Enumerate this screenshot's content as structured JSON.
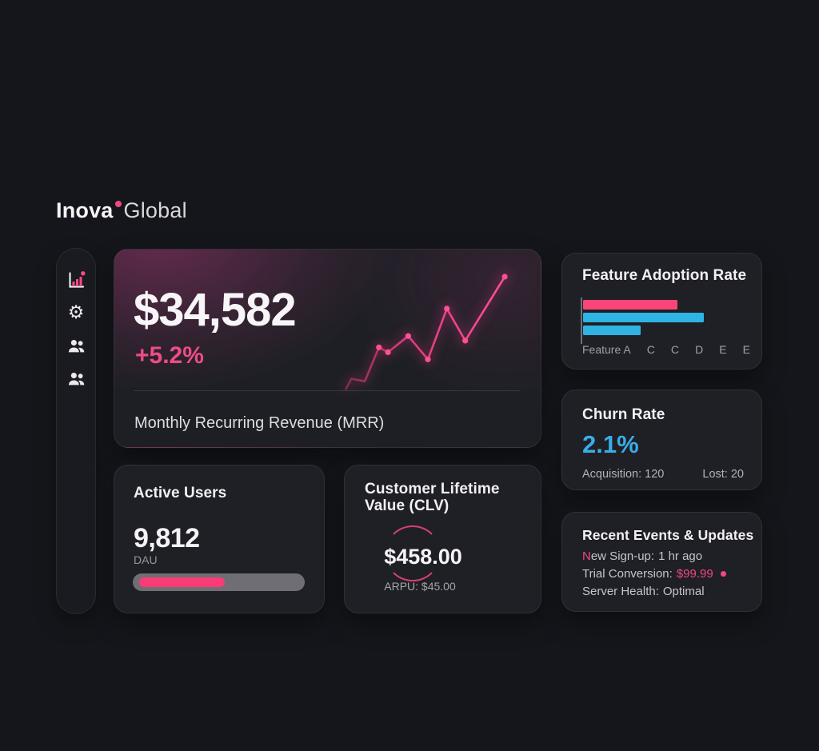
{
  "colors": {
    "background": "#15161b",
    "card": "#1f2026",
    "accent_pink": "#f04782",
    "bar_pink": "#fa4579",
    "accent_blue": "#2fb3e3",
    "ring_pink": "#d84070"
  },
  "brand": {
    "name_bold": "Inova",
    "name_light": "Global"
  },
  "sidebar": {
    "items": [
      {
        "name": "analytics",
        "icon": "bar-chart-icon",
        "active": true
      },
      {
        "name": "settings",
        "icon": "gear-icon",
        "active": false
      },
      {
        "name": "customers",
        "icon": "users-icon",
        "active": false
      },
      {
        "name": "team",
        "icon": "users-icon",
        "active": false
      }
    ]
  },
  "mrr_card": {
    "value": "$34,582",
    "delta": "+5.2%",
    "label": "Monthly Recurring Revenue (MRR)"
  },
  "active_users_card": {
    "title": "Active Users",
    "value": "9,812",
    "sublabel": "DAU"
  },
  "clv_card": {
    "title": "Customer Lifetime Value (CLV)",
    "value": "$458.00",
    "footnote": "ARPU: $45.00"
  },
  "feature_card": {
    "title": "Feature Adoption Rate"
  },
  "churn_card": {
    "title": "Churn Rate",
    "value": "2.1%",
    "stat_left": "Acquisition: 120",
    "stat_right": "Lost: 20"
  },
  "events_card": {
    "title": "Recent Events & Updates",
    "items": [
      {
        "label": "New Sign-up:",
        "value": "1 hr ago",
        "accent_first_letter": true,
        "value_accent": false,
        "trailing_dot": false
      },
      {
        "label": "Trial Conversion:",
        "value": "$99.99",
        "accent_first_letter": false,
        "value_accent": true,
        "trailing_dot": true
      },
      {
        "label": "Server Health:",
        "value": "Optimal",
        "accent_first_letter": false,
        "value_accent": false,
        "trailing_dot": false
      }
    ]
  },
  "chart_data": [
    {
      "id": "mrr_trend",
      "type": "line",
      "title": "MRR trend sparkline",
      "axes_labeled": false,
      "units": "relative_pct (x 0-100 left-to-right, y 0-100 low-to-high, estimated from pixels; no axis labels shown)",
      "points": [
        {
          "x": 9.4,
          "y": 7.1
        },
        {
          "x": 12.3,
          "y": 14.5
        },
        {
          "x": 19.6,
          "y": 12.7
        },
        {
          "x": 27.3,
          "y": 37.9
        },
        {
          "x": 32.2,
          "y": 34.3
        },
        {
          "x": 43.2,
          "y": 46.3
        },
        {
          "x": 53.9,
          "y": 29.0
        },
        {
          "x": 64.2,
          "y": 66.7
        },
        {
          "x": 74.2,
          "y": 42.9
        },
        {
          "x": 95.7,
          "y": 90.5
        }
      ],
      "dot_start_index": 3,
      "line_color": "#f03c83",
      "dot_color": "#ff5095"
    },
    {
      "id": "feature_adoption",
      "type": "bar",
      "orientation": "horizontal",
      "units": "relative_width_pct (no numeric axis shown)",
      "bars": [
        {
          "value": 52,
          "color": "#fa4579"
        },
        {
          "value": 67,
          "color": "#2fb3e3"
        },
        {
          "value": 32,
          "color": "#2fb3e3"
        }
      ],
      "tick_labels": [
        "Feature A",
        "C",
        "C",
        "D",
        "E",
        "E"
      ],
      "legend": "none",
      "grid": false
    },
    {
      "id": "dau_progress",
      "type": "progress",
      "value_pct": 54,
      "color": "#fb3b76"
    }
  ]
}
